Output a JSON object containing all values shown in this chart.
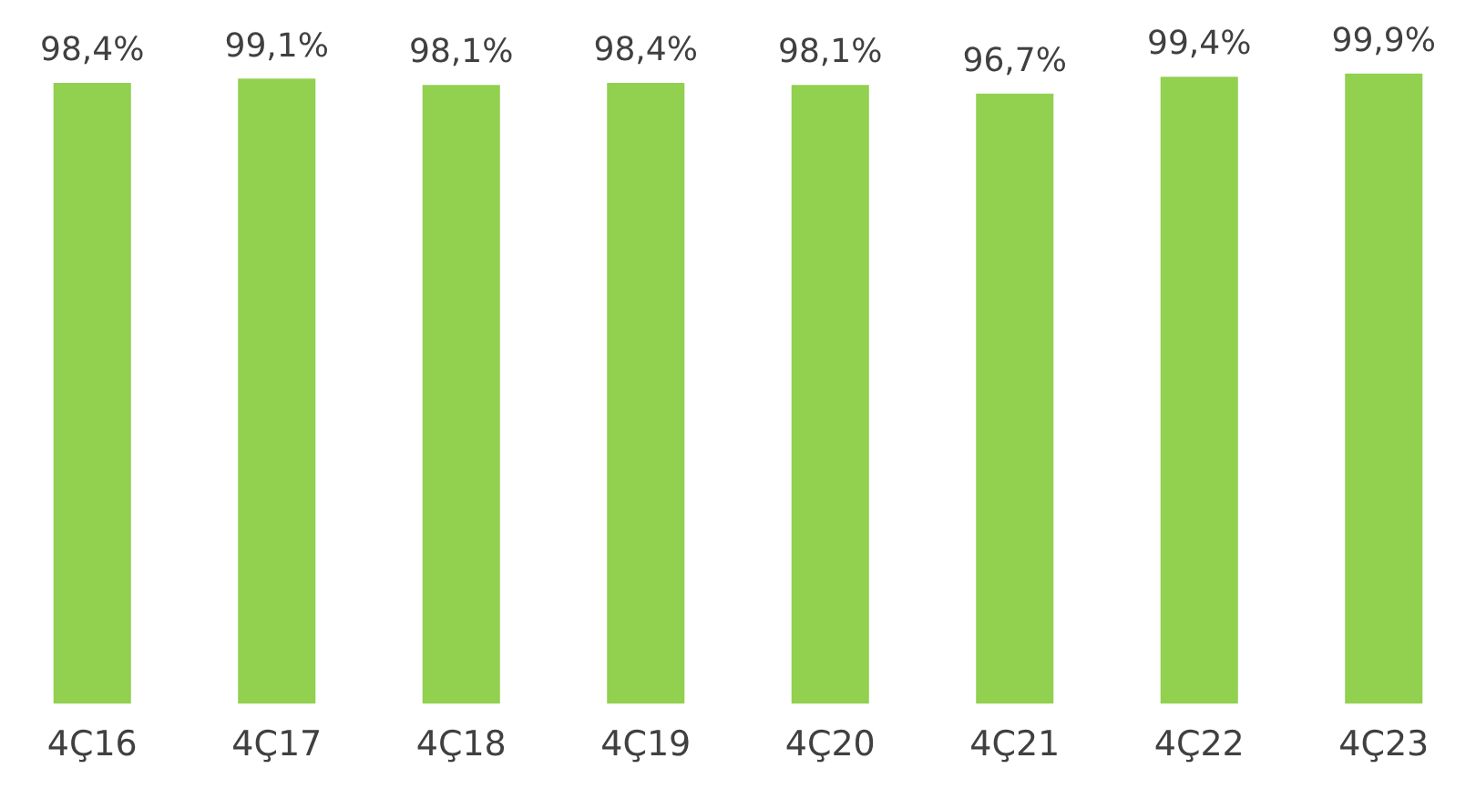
{
  "chart_data": {
    "type": "bar",
    "categories": [
      "4Ç16",
      "4Ç17",
      "4Ç18",
      "4Ç19",
      "4Ç20",
      "4Ç21",
      "4Ç22",
      "4Ç23"
    ],
    "values": [
      98.4,
      99.1,
      98.1,
      98.4,
      98.1,
      96.7,
      99.4,
      99.9
    ],
    "value_labels": [
      "98,4%",
      "99,1%",
      "98,1%",
      "98,4%",
      "98,1%",
      "96,7%",
      "99,4%",
      "99,9%"
    ],
    "color": "#92d050",
    "grid": false,
    "legend": false
  }
}
